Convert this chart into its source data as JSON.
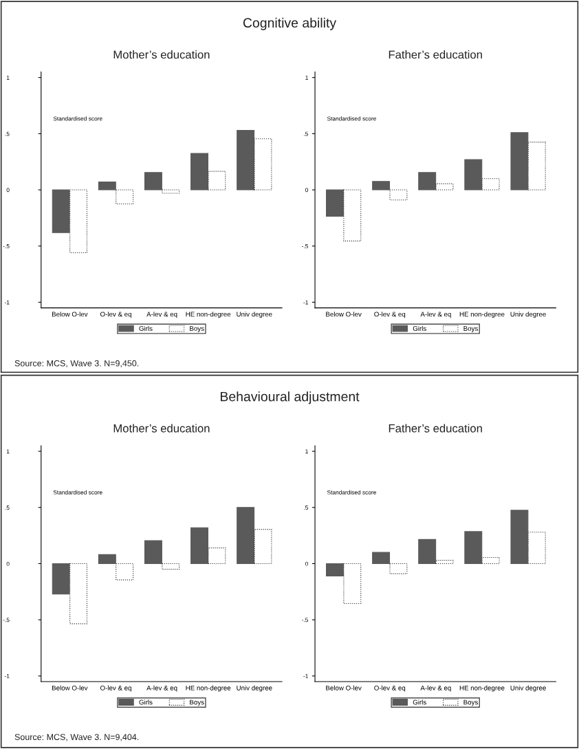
{
  "chart_data": [
    {
      "type": "bar",
      "title": "Cognitive ability",
      "subtitle": "Mother’s education",
      "ylabel": "Standardised score",
      "categories": [
        "Below O-lev",
        "O-lev & eq",
        "A-lev & eq",
        "HE non-degree",
        "Univ degree"
      ],
      "series": [
        {
          "name": "Girls",
          "color": "#5a5a5a",
          "values": [
            -0.38,
            0.07,
            0.155,
            0.325,
            0.53
          ]
        },
        {
          "name": "Boys",
          "color": "#ffffff",
          "values": [
            -0.56,
            -0.125,
            -0.03,
            0.165,
            0.455
          ]
        }
      ],
      "ylim": [
        -1.05,
        1.05
      ],
      "yticks": [
        {
          "value": -1,
          "label": "-1"
        },
        {
          "value": -0.5,
          "label": "-.5"
        },
        0,
        {
          "value": 0.5,
          "label": ".5"
        },
        1
      ],
      "grid": false,
      "legend": "bottom",
      "annotations": [
        "Source: MCS, Wave 3. N=9,450."
      ]
    },
    {
      "type": "bar",
      "subtitle": "Father’s education",
      "ylabel": "Standardised score",
      "categories": [
        "Below O-lev",
        "O-lev & eq",
        "A-lev & eq",
        "HE non-degree",
        "Univ degree"
      ],
      "series": [
        {
          "name": "Girls",
          "color": "#5a5a5a",
          "values": [
            -0.235,
            0.075,
            0.155,
            0.27,
            0.51
          ]
        },
        {
          "name": "Boys",
          "color": "#ffffff",
          "values": [
            -0.455,
            -0.09,
            0.055,
            0.1,
            0.425
          ]
        }
      ],
      "ylim": [
        -1.05,
        1.05
      ],
      "yticks": [
        {
          "value": -1,
          "label": "-1"
        },
        {
          "value": -0.5,
          "label": "-.5"
        },
        0,
        {
          "value": 0.5,
          "label": ".5"
        },
        1
      ],
      "grid": false,
      "legend": "bottom"
    },
    {
      "type": "bar",
      "title": "Behavioural adjustment",
      "subtitle": "Mother’s education",
      "ylabel": "Standardised score",
      "categories": [
        "Below O-lev",
        "O-lev & eq",
        "A-lev & eq",
        "HE non-degree",
        "Univ degree"
      ],
      "series": [
        {
          "name": "Girls",
          "color": "#5a5a5a",
          "values": [
            -0.27,
            0.08,
            0.205,
            0.32,
            0.5
          ]
        },
        {
          "name": "Boys",
          "color": "#ffffff",
          "values": [
            -0.535,
            -0.145,
            -0.05,
            0.14,
            0.305
          ]
        }
      ],
      "ylim": [
        -1.05,
        1.05
      ],
      "yticks": [
        {
          "value": -1,
          "label": "-1"
        },
        {
          "value": -0.5,
          "label": "-.5"
        },
        0,
        {
          "value": 0.5,
          "label": ".5"
        },
        1
      ],
      "grid": false,
      "legend": "bottom",
      "annotations": [
        "Source: MCS, Wave 3. N=9,404."
      ]
    },
    {
      "type": "bar",
      "subtitle": "Father’s education",
      "ylabel": "Standardised score",
      "categories": [
        "Below O-lev",
        "O-lev & eq",
        "A-lev & eq",
        "HE non-degree",
        "Univ degree"
      ],
      "series": [
        {
          "name": "Girls",
          "color": "#5a5a5a",
          "values": [
            -0.11,
            0.1,
            0.215,
            0.285,
            0.475
          ]
        },
        {
          "name": "Boys",
          "color": "#ffffff",
          "values": [
            -0.355,
            -0.09,
            0.03,
            0.055,
            0.28
          ]
        }
      ],
      "ylim": [
        -1.05,
        1.05
      ],
      "yticks": [
        {
          "value": -1,
          "label": "-1"
        },
        {
          "value": -0.5,
          "label": "-.5"
        },
        0,
        {
          "value": 0.5,
          "label": ".5"
        },
        1
      ],
      "grid": false,
      "legend": "bottom"
    }
  ]
}
